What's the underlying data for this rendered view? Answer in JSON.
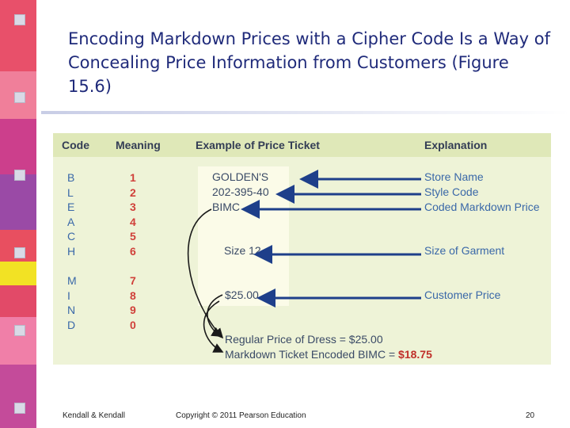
{
  "title": "Encoding Markdown Prices with a Cipher Code Is a Way of Concealing Price Information from Customers (Figure 15.6)",
  "figure": {
    "headers": {
      "code": "Code",
      "meaning": "Meaning",
      "ticket": "Example of Price Ticket",
      "explanation": "Explanation"
    },
    "codes": [
      {
        "letter": "B",
        "digit": "1"
      },
      {
        "letter": "L",
        "digit": "2"
      },
      {
        "letter": "E",
        "digit": "3"
      },
      {
        "letter": "A",
        "digit": "4"
      },
      {
        "letter": "C",
        "digit": "5"
      },
      {
        "letter": "H",
        "digit": "6"
      },
      {
        "letter": "M",
        "digit": "7"
      },
      {
        "letter": "I",
        "digit": "8"
      },
      {
        "letter": "N",
        "digit": "9"
      },
      {
        "letter": "D",
        "digit": "0"
      }
    ],
    "ticket": {
      "store": "GOLDEN'S",
      "style": "202-395-40",
      "coded": "BIMC",
      "size": "Size 12",
      "price": "$25.00"
    },
    "explanations": {
      "store": "Store Name",
      "style": "Style Code",
      "coded": "Coded Markdown Price",
      "size": "Size of Garment",
      "price": "Customer Price"
    },
    "regular_price_label": "Regular Price of Dress = $25.00",
    "markdown_label": "Markdown Ticket Encoded BIMC = ",
    "markdown_value": "$18.75"
  },
  "footer": {
    "left": "Kendall & Kendall",
    "center": "Copyright © 2011 Pearson Education",
    "page": "20"
  },
  "colors": {
    "title": "#1f2a7a",
    "figure_bg": "#eef3d7",
    "header_bg": "#dfe8b8",
    "code_blue": "#3a68a8",
    "digit_red": "#d0403a",
    "arrow": "#1e3f8a"
  }
}
